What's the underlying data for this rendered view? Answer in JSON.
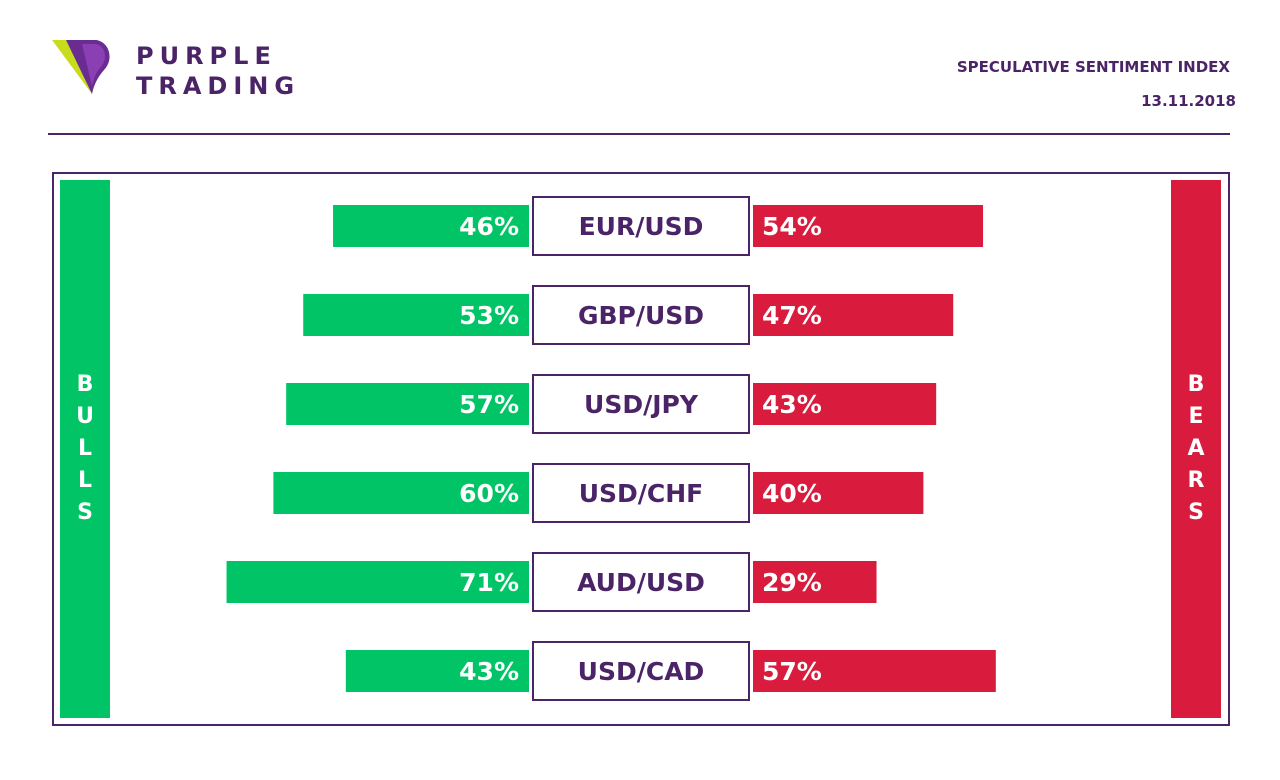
{
  "brand": {
    "line1": "PURPLE",
    "line2": "TRADING"
  },
  "header": {
    "title": "SPECULATIVE SENTIMENT INDEX",
    "date": "13.11.2018"
  },
  "sides": {
    "bulls": "BULLS",
    "bears": "BEARS"
  },
  "colors": {
    "purple": "#4a2466",
    "bull": "#00c466",
    "bear": "#d91b3e"
  },
  "chart_data": {
    "type": "bar",
    "categories": [
      "EUR/USD",
      "GBP/USD",
      "USD/JPY",
      "USD/CHF",
      "AUD/USD",
      "USD/CAD"
    ],
    "series": [
      {
        "name": "BULLS",
        "values": [
          46,
          53,
          57,
          60,
          71,
          43
        ],
        "labels": [
          "46%",
          "53%",
          "57%",
          "60%",
          "71%",
          "43%"
        ]
      },
      {
        "name": "BEARS",
        "values": [
          54,
          47,
          43,
          40,
          29,
          57
        ],
        "labels": [
          "54%",
          "47%",
          "43%",
          "40%",
          "29%",
          "57%"
        ]
      }
    ],
    "unit": "%"
  }
}
